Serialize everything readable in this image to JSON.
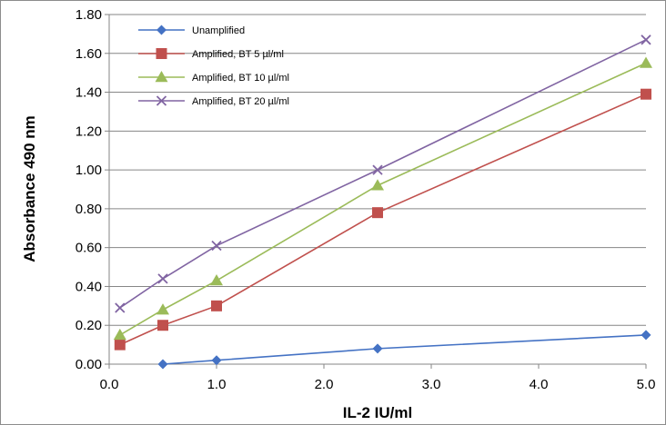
{
  "chart_data": {
    "type": "line",
    "title": "",
    "xlabel": "IL-2 IU/ml",
    "ylabel": "Absorbance 490 nm",
    "xlim": [
      0.0,
      5.0
    ],
    "ylim": [
      0.0,
      1.8
    ],
    "x_ticks": [
      "0.0",
      "1.0",
      "2.0",
      "3.0",
      "4.0",
      "5.0"
    ],
    "y_ticks": [
      "0.00",
      "0.20",
      "0.40",
      "0.60",
      "0.80",
      "1.00",
      "1.20",
      "1.40",
      "1.60",
      "1.80"
    ],
    "grid": "horizontal",
    "legend_position": "top-left",
    "series": [
      {
        "name": "Unamplified",
        "color": "#4472C4",
        "marker": "diamond",
        "x": [
          0.5,
          1.0,
          2.5,
          5.0
        ],
        "y": [
          0.0,
          0.02,
          0.08,
          0.15
        ]
      },
      {
        "name": "Amplified, BT 5 µl/ml",
        "color": "#C0504D",
        "marker": "square",
        "x": [
          0.1,
          0.5,
          1.0,
          2.5,
          5.0
        ],
        "y": [
          0.1,
          0.2,
          0.3,
          0.78,
          1.39
        ]
      },
      {
        "name": "Amplified, BT 10 µl/ml",
        "color": "#9BBB59",
        "marker": "triangle",
        "x": [
          0.1,
          0.5,
          1.0,
          2.5,
          5.0
        ],
        "y": [
          0.15,
          0.28,
          0.43,
          0.92,
          1.55
        ]
      },
      {
        "name": "Amplified, BT 20 µl/ml",
        "color": "#8064A2",
        "marker": "x",
        "x": [
          0.1,
          0.5,
          1.0,
          2.5,
          5.0
        ],
        "y": [
          0.29,
          0.44,
          0.61,
          1.0,
          1.67
        ]
      }
    ]
  }
}
